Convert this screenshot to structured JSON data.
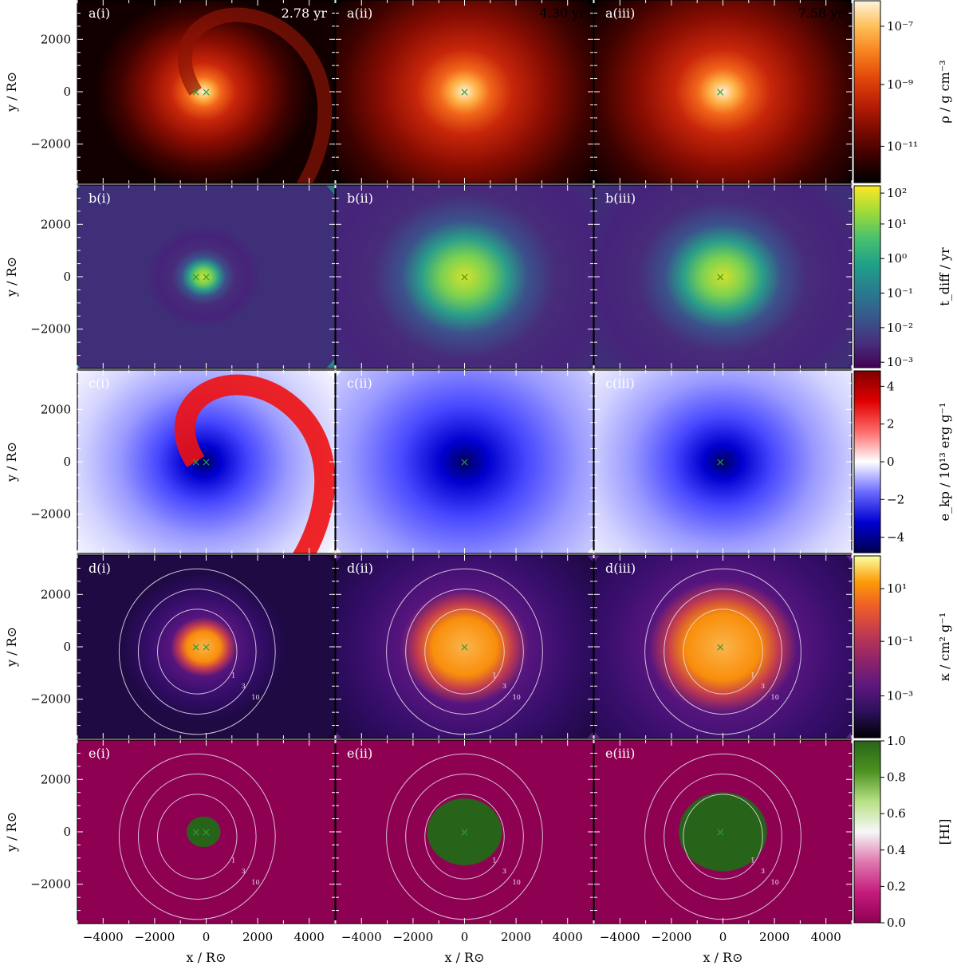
{
  "figure": {
    "columns": [
      {
        "id": "i",
        "time": "2.78 yr"
      },
      {
        "id": "ii",
        "time": "4.30 yr"
      },
      {
        "id": "iii",
        "time": "7.58 yr"
      }
    ],
    "rows": [
      {
        "id": "a",
        "quantity": "density",
        "colorbar_label": "ρ / g cm⁻³",
        "colorbar_scale": "log",
        "colorbar_ticks": [
          "10⁻⁷",
          "10⁻⁹",
          "10⁻¹¹"
        ],
        "colormap": [
          "#000000",
          "#3a0000",
          "#7a0a00",
          "#b81e05",
          "#e0460a",
          "#f7801c",
          "#ffbe57",
          "#fff3dd"
        ]
      },
      {
        "id": "b",
        "quantity": "diffusion time",
        "colorbar_label": "t_diff / yr",
        "colorbar_scale": "log",
        "colorbar_ticks": [
          "10²",
          "10¹",
          "10⁰",
          "10⁻¹",
          "10⁻²",
          "10⁻³"
        ],
        "colormap": [
          "#440154",
          "#46317e",
          "#365a8c",
          "#277e8e",
          "#1fa187",
          "#4ac16d",
          "#a0da39",
          "#fde725"
        ]
      },
      {
        "id": "c",
        "quantity": "kinetic plus potential energy",
        "colorbar_label": "e_kp / 10¹³ erg g⁻¹",
        "colorbar_scale": "linear",
        "colorbar_ticks": [
          "4",
          "2",
          "0",
          "−2",
          "−4"
        ],
        "colormap": [
          "#00004f",
          "#0000d0",
          "#6a6aff",
          "#ffffff",
          "#ff6a6a",
          "#e00000",
          "#7f0000"
        ]
      },
      {
        "id": "d",
        "quantity": "opacity",
        "colorbar_label": "κ / cm² g⁻¹",
        "colorbar_scale": "log",
        "colorbar_ticks": [
          "10¹",
          "10⁻¹",
          "10⁻³"
        ],
        "colormap": [
          "#000004",
          "#2c105c",
          "#5d177e",
          "#8f2469",
          "#c13a50",
          "#ed5a2a",
          "#fb9b06",
          "#fcffa4"
        ]
      },
      {
        "id": "e",
        "quantity": "HI fraction",
        "colorbar_label": "[HI]",
        "colorbar_scale": "linear",
        "colorbar_ticks": [
          "1.0",
          "0.8",
          "0.6",
          "0.4",
          "0.2",
          "0.0"
        ],
        "colormap": [
          "#8e0152",
          "#c51b7d",
          "#de77ae",
          "#f7f7f7",
          "#b8e186",
          "#4d9221",
          "#276419"
        ]
      }
    ],
    "x_axis": {
      "label": "x / R⊙",
      "ticks": [
        "−4000",
        "−2000",
        "0",
        "2000",
        "4000"
      ],
      "range": [
        -5000,
        5000
      ]
    },
    "y_axis": {
      "label": "y / R⊙",
      "ticks": [
        "2000",
        "0",
        "−2000"
      ],
      "range": [
        -3500,
        3500
      ]
    },
    "contour_labels": [
      "1",
      "3",
      "10"
    ],
    "marker": "×",
    "marker_color": "#2a9d3a"
  },
  "chart_data": {
    "type": "heatmap",
    "panels": [
      "a(i)",
      "a(ii)",
      "a(iii)",
      "b(i)",
      "b(ii)",
      "b(iii)",
      "c(i)",
      "c(ii)",
      "c(iii)",
      "d(i)",
      "d(ii)",
      "d(iii)",
      "e(i)",
      "e(ii)",
      "e(iii)"
    ],
    "times": [
      "2.78 yr",
      "4.30 yr",
      "7.58 yr"
    ],
    "xlabel": "x / R⊙",
    "ylabel": "y / R⊙",
    "xlim": [
      -5000,
      5000
    ],
    "ylim": [
      -3500,
      3500
    ],
    "x_ticks": [
      -4000,
      -2000,
      0,
      2000,
      4000
    ],
    "y_ticks": [
      2000,
      0,
      -2000
    ],
    "colorbars": [
      {
        "label": "ρ / g cm⁻³",
        "scale": "log",
        "range": [
          1e-12,
          1e-06
        ]
      },
      {
        "label": "t_diff / yr",
        "scale": "log",
        "range": [
          0.001,
          200.0
        ]
      },
      {
        "label": "e_kp / 10¹³ erg g⁻¹",
        "scale": "linear",
        "range": [
          -5,
          5
        ]
      },
      {
        "label": "κ / cm² g⁻¹",
        "scale": "log",
        "range": [
          0.0001,
          30.0
        ]
      },
      {
        "label": "[HI]",
        "scale": "linear",
        "range": [
          0,
          1
        ]
      }
    ],
    "markers_x": [
      [
        -400,
        0
      ],
      [
        0
      ],
      [
        -100
      ]
    ],
    "markers_y": [
      [
        0,
        0
      ],
      [
        0
      ],
      [
        0
      ]
    ]
  }
}
